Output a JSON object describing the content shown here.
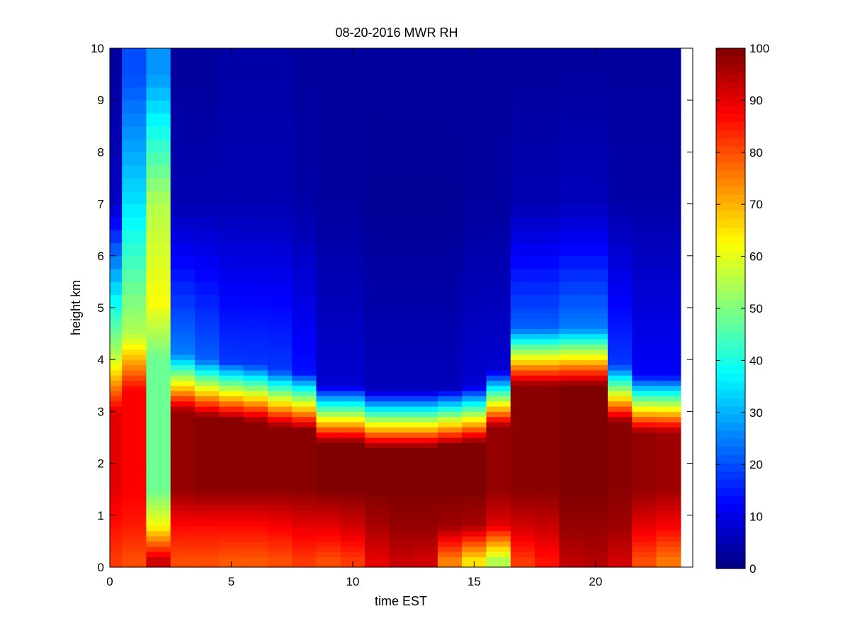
{
  "chart_data": {
    "type": "heatmap",
    "title": "08-20-2016 MWR RH",
    "xlabel": "time EST",
    "ylabel": "height km",
    "xlim": [
      0,
      24
    ],
    "ylim": [
      0,
      10
    ],
    "xticks": [
      0,
      5,
      10,
      15,
      20
    ],
    "yticks": [
      0,
      1,
      2,
      3,
      4,
      5,
      6,
      7,
      8,
      9,
      10
    ],
    "colorbar": {
      "range": [
        0,
        100
      ],
      "ticks": [
        0,
        10,
        20,
        30,
        40,
        50,
        60,
        70,
        80,
        90,
        100
      ],
      "colormap": "jet"
    },
    "time_hours": [
      0,
      1,
      2,
      3,
      4,
      5,
      6,
      7,
      8,
      9,
      10,
      11,
      12,
      13,
      14,
      15,
      16,
      17,
      18,
      19,
      20,
      21,
      22,
      23
    ],
    "height_km": [
      0.0,
      0.1,
      0.2,
      0.3,
      0.4,
      0.5,
      0.6,
      0.7,
      0.8,
      0.9,
      1.0,
      1.1,
      1.2,
      1.3,
      1.4,
      1.5,
      1.6,
      1.7,
      1.8,
      1.9,
      2.0,
      2.1,
      2.2,
      2.3,
      2.4,
      2.5,
      2.6,
      2.7,
      2.8,
      2.9,
      3.0,
      3.1,
      3.2,
      3.3,
      3.4,
      3.5,
      3.6,
      3.7,
      3.8,
      3.9,
      4.0,
      4.1,
      4.2,
      4.3,
      4.4,
      4.5,
      4.6,
      4.7,
      4.8,
      4.9,
      5.0,
      5.25,
      5.5,
      5.75,
      6.0,
      6.25,
      6.5,
      6.75,
      7.0,
      7.25,
      7.5,
      7.75,
      8.0,
      8.25,
      8.5,
      8.75,
      9.0,
      9.25,
      9.5,
      9.75
    ],
    "profiles": [
      {
        "time": 0,
        "sfc": 82,
        "b1": 86,
        "bnd": 90,
        "top": 3.5,
        "mid": 55,
        "up": 7,
        "up9": 3
      },
      {
        "time": 1,
        "sfc": 80,
        "b1": 85,
        "bnd": 88,
        "top": 3.9,
        "mid": 55,
        "up": 35,
        "up9": 20
      },
      {
        "time": 2,
        "sfc": 92,
        "b1": 62,
        "bnd": 48,
        "top": 4.5,
        "mid": 62,
        "up": 55,
        "up9": 27
      },
      {
        "time": 3,
        "sfc": 80,
        "b1": 87,
        "bnd": 98,
        "top": 3.5,
        "mid": 25,
        "up": 5,
        "up9": 3
      },
      {
        "time": 4,
        "sfc": 80,
        "b1": 87,
        "bnd": 99,
        "top": 3.4,
        "mid": 22,
        "up": 5,
        "up9": 3
      },
      {
        "time": 5,
        "sfc": 79,
        "b1": 87,
        "bnd": 99,
        "top": 3.35,
        "mid": 18,
        "up": 5,
        "up9": 4
      },
      {
        "time": 6,
        "sfc": 79,
        "b1": 87,
        "bnd": 99,
        "top": 3.3,
        "mid": 18,
        "up": 5,
        "up9": 4
      },
      {
        "time": 7,
        "sfc": 80,
        "b1": 88,
        "bnd": 99,
        "top": 3.2,
        "mid": 18,
        "up": 5,
        "up9": 4
      },
      {
        "time": 8,
        "sfc": 82,
        "b1": 90,
        "bnd": 99,
        "top": 3.15,
        "mid": 14,
        "up": 4,
        "up9": 3
      },
      {
        "time": 9,
        "sfc": 80,
        "b1": 90,
        "bnd": 100,
        "top": 2.9,
        "mid": 8,
        "up": 3,
        "up9": 3
      },
      {
        "time": 10,
        "sfc": 82,
        "b1": 92,
        "bnd": 100,
        "top": 2.9,
        "mid": 8,
        "up": 3,
        "up9": 3
      },
      {
        "time": 11,
        "sfc": 90,
        "b1": 96,
        "bnd": 100,
        "top": 2.8,
        "mid": 6,
        "up": 2,
        "up9": 3
      },
      {
        "time": 12,
        "sfc": 93,
        "b1": 98,
        "bnd": 100,
        "top": 2.8,
        "mid": 6,
        "up": 2,
        "up9": 3
      },
      {
        "time": 13,
        "sfc": 92,
        "b1": 98,
        "bnd": 100,
        "top": 2.8,
        "mid": 6,
        "up": 2,
        "up9": 3
      },
      {
        "time": 14,
        "sfc": 75,
        "b1": 97,
        "bnd": 100,
        "top": 2.85,
        "mid": 6,
        "up": 2,
        "up9": 3
      },
      {
        "time": 15,
        "sfc": 65,
        "b1": 96,
        "bnd": 100,
        "top": 2.9,
        "mid": 8,
        "up": 3,
        "up9": 3
      },
      {
        "time": 16,
        "sfc": 55,
        "b1": 90,
        "bnd": 98,
        "top": 3.2,
        "mid": 8,
        "up": 3,
        "up9": 3
      },
      {
        "time": 17,
        "sfc": 82,
        "b1": 92,
        "bnd": 99,
        "top": 4.0,
        "mid": 22,
        "up": 5,
        "up9": 3
      },
      {
        "time": 18,
        "sfc": 86,
        "b1": 93,
        "bnd": 99,
        "top": 4.0,
        "mid": 22,
        "up": 5,
        "up9": 3
      },
      {
        "time": 19,
        "sfc": 94,
        "b1": 98,
        "bnd": 100,
        "top": 4.0,
        "mid": 25,
        "up": 6,
        "up9": 3
      },
      {
        "time": 20,
        "sfc": 95,
        "b1": 98,
        "bnd": 100,
        "top": 4.0,
        "mid": 25,
        "up": 6,
        "up9": 3
      },
      {
        "time": 21,
        "sfc": 92,
        "b1": 97,
        "bnd": 99,
        "top": 3.3,
        "mid": 18,
        "up": 4,
        "up9": 3
      },
      {
        "time": 22,
        "sfc": 80,
        "b1": 90,
        "bnd": 98,
        "top": 3.1,
        "mid": 12,
        "up": 4,
        "up9": 3
      },
      {
        "time": 23,
        "sfc": 76,
        "b1": 88,
        "bnd": 97,
        "top": 3.1,
        "mid": 12,
        "up": 4,
        "up9": 3
      }
    ]
  }
}
